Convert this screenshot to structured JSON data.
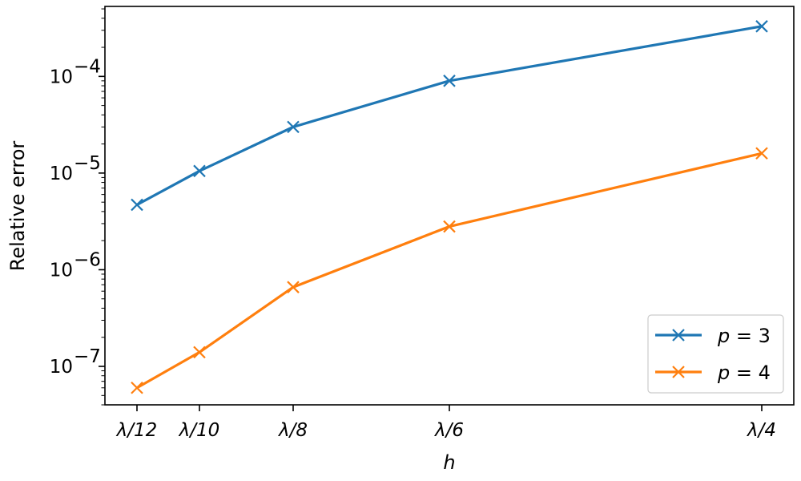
{
  "chart_data": {
    "type": "line",
    "xlabel": "h",
    "ylabel": "Relative error",
    "xscale": "reciprocal",
    "yscale": "log",
    "grid": false,
    "legend_placement": "bottom-right",
    "x_ticks": [
      {
        "value": 12,
        "label": "λ/12"
      },
      {
        "value": 10,
        "label": "λ/10"
      },
      {
        "value": 8,
        "label": "λ/8"
      },
      {
        "value": 6,
        "label": "λ/6"
      },
      {
        "value": 4,
        "label": "λ/4"
      }
    ],
    "y_ticks": [
      {
        "value": 1e-07,
        "base": "10",
        "exp": "−7"
      },
      {
        "value": 1e-06,
        "base": "10",
        "exp": "−6"
      },
      {
        "value": 1e-05,
        "base": "10",
        "exp": "−5"
      },
      {
        "value": 0.0001,
        "base": "10",
        "exp": "−4"
      }
    ],
    "ylim": [
      4e-08,
      0.00053
    ],
    "series": [
      {
        "name": "p = 3",
        "legend_var": "p",
        "legend_val": "3",
        "color": "#1f77b4",
        "marker": "x",
        "x": [
          12,
          10,
          8,
          6,
          4
        ],
        "y": [
          4.7e-06,
          1.05e-05,
          3e-05,
          9e-05,
          0.00033
        ]
      },
      {
        "name": "p = 4",
        "legend_var": "p",
        "legend_val": "4",
        "color": "#ff7f0e",
        "marker": "x",
        "x": [
          12,
          10,
          8,
          6,
          4
        ],
        "y": [
          6e-08,
          1.4e-07,
          6.6e-07,
          2.8e-06,
          1.6e-05
        ]
      }
    ]
  }
}
